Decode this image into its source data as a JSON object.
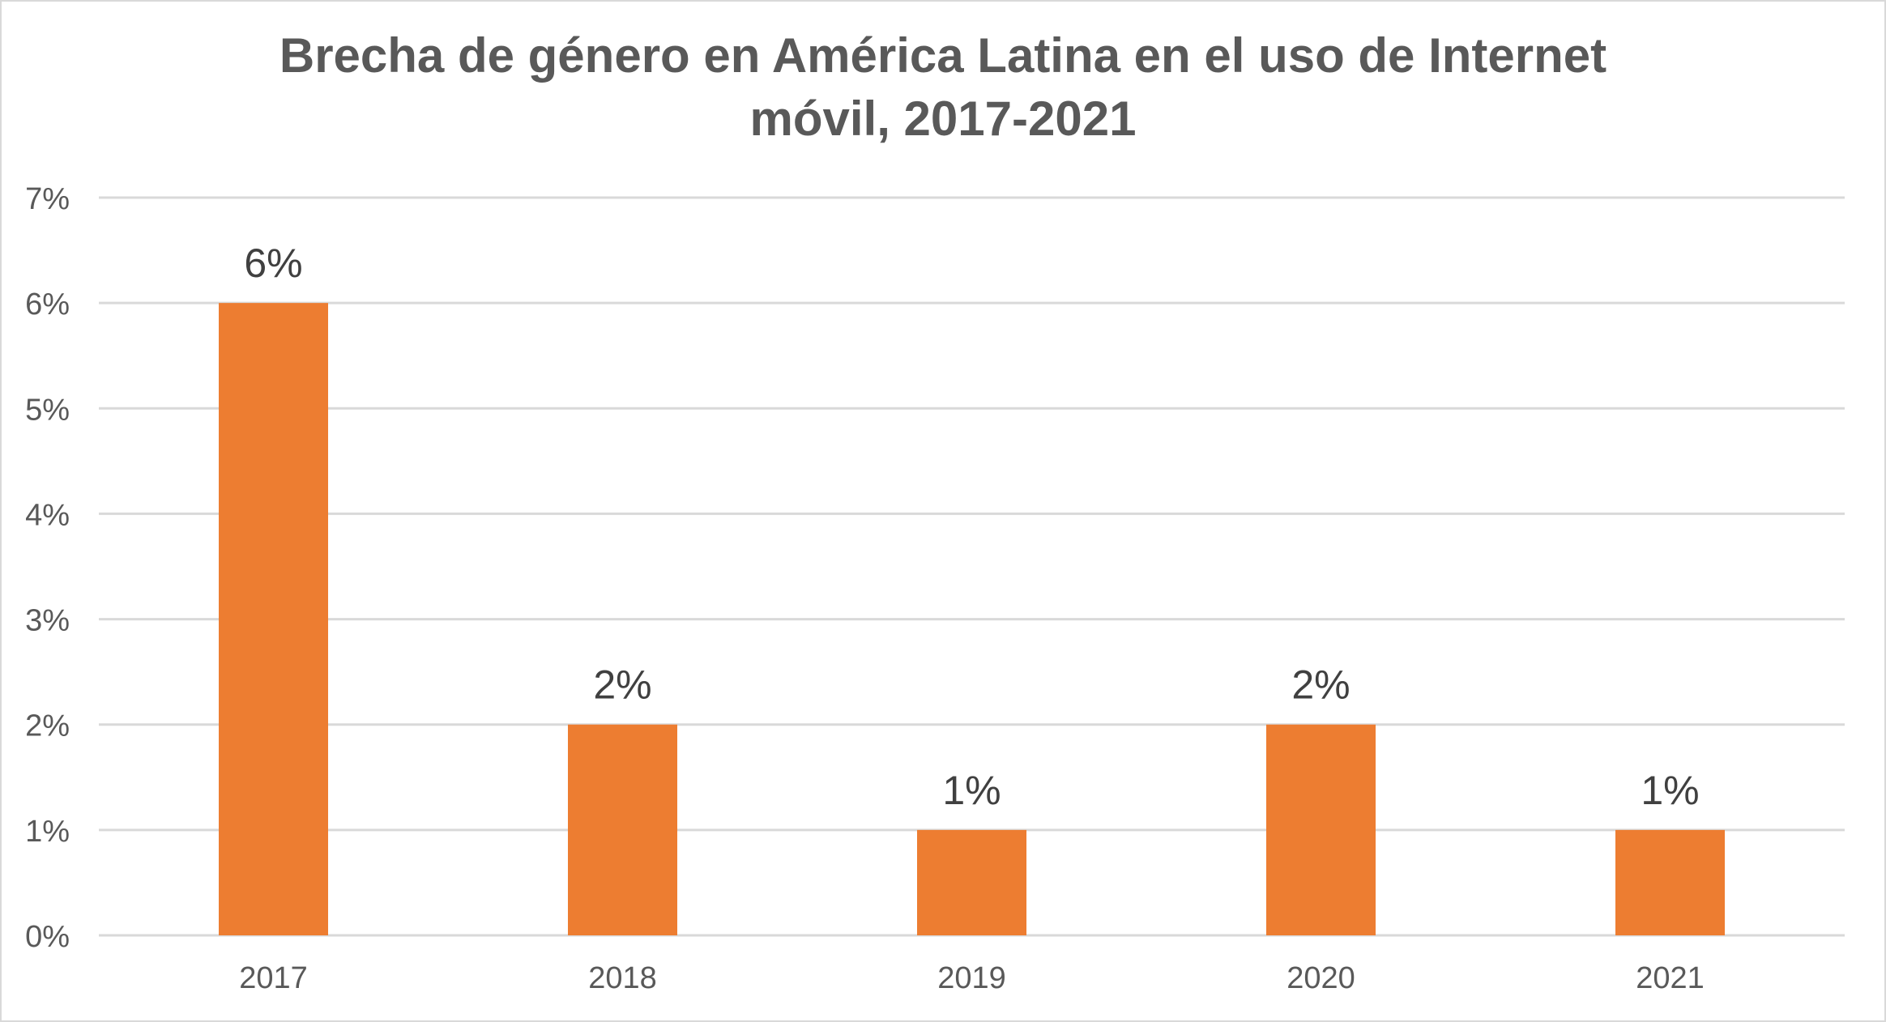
{
  "chart_data": {
    "type": "bar",
    "title_lines": [
      "Brecha de género en América Latina en el uso de Internet",
      "móvil, 2017-2021"
    ],
    "categories": [
      "2017",
      "2018",
      "2019",
      "2020",
      "2021"
    ],
    "values": [
      6,
      2,
      1,
      2,
      1
    ],
    "data_labels": [
      "6%",
      "2%",
      "1%",
      "2%",
      "1%"
    ],
    "ylim": [
      0,
      7
    ],
    "yticks": [
      "0%",
      "1%",
      "2%",
      "3%",
      "4%",
      "5%",
      "6%",
      "7%"
    ],
    "grid": true,
    "legend": "none",
    "colors": {
      "bar": "#ED7D31",
      "grid": "#d9d9d9",
      "text": "#595959"
    }
  }
}
